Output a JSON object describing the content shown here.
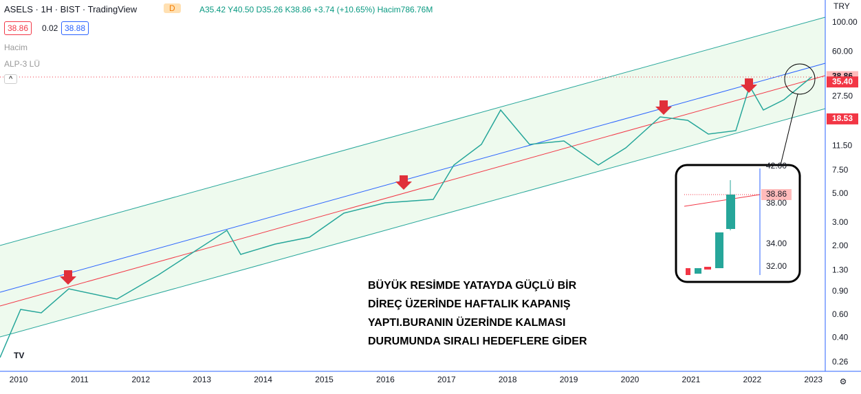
{
  "header": {
    "symbol": "ASELS · 1H · BIST · TradingView",
    "badge": "D",
    "ohlc": "A35.42 Y40.50 D35.26 K38.86 +3.74 (+10.65%) Hacim786.76M",
    "bid": "38.86",
    "spread": "0.02",
    "ask": "38.88",
    "indicators": [
      "Hacim",
      "ALP-3 LÜ"
    ]
  },
  "price_axis": {
    "currency": "TRY",
    "ticks": [
      {
        "value": 100,
        "label": "100.00"
      },
      {
        "value": 60,
        "label": "60.00"
      },
      {
        "value": 27.5,
        "label": "27.50"
      },
      {
        "value": 11.5,
        "label": "11.50"
      },
      {
        "value": 7.5,
        "label": "7.50"
      },
      {
        "value": 5,
        "label": "5.00"
      },
      {
        "value": 3,
        "label": "3.00"
      },
      {
        "value": 2,
        "label": "2.00"
      },
      {
        "value": 1.3,
        "label": "1.30"
      },
      {
        "value": 0.9,
        "label": "0.90"
      },
      {
        "value": 0.6,
        "label": "0.60"
      },
      {
        "value": 0.4,
        "label": "0.40"
      },
      {
        "value": 0.26,
        "label": "0.26"
      }
    ],
    "badges": [
      {
        "value": 38.86,
        "label": "38.86"
      },
      {
        "value": 35.4,
        "label": "35.40"
      },
      {
        "value": 18.53,
        "label": "18.53"
      }
    ]
  },
  "time_axis": [
    "2010",
    "2011",
    "2012",
    "2013",
    "2014",
    "2015",
    "2016",
    "2017",
    "2018",
    "2019",
    "2020",
    "2021",
    "2022",
    "2023"
  ],
  "inset": {
    "labels": [
      "42.00",
      "38.86",
      "38.00",
      "34.00",
      "32.00"
    ]
  },
  "annotation": [
    "BÜYÜK RESİMDE YATAYDA GÜÇLÜ BİR",
    "DİREÇ ÜZERİNDE HAFTALIK KAPANIŞ",
    "YAPTI.BURANIN ÜZERİNDE KALMASI",
    "DURUMUNDA SIRALI HEDEFLERE GİDER"
  ]
}
